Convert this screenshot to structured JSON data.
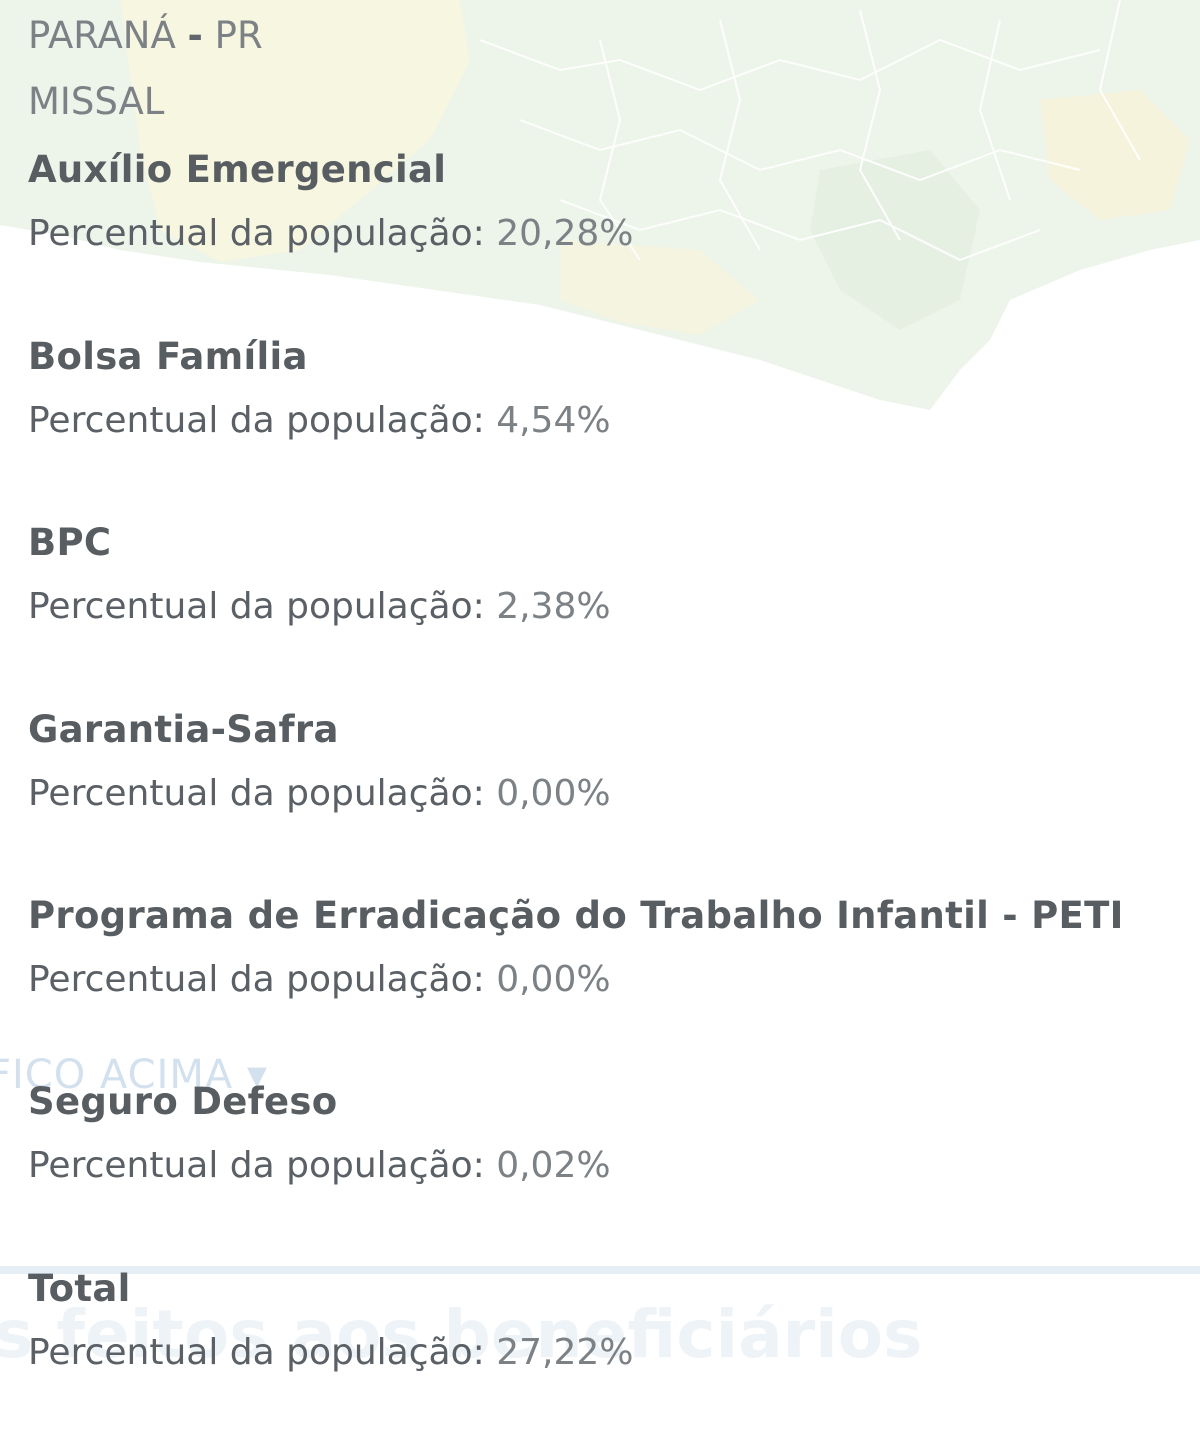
{
  "header": {
    "state": "PARANÁ",
    "separator": "-",
    "state_abbr": "PR",
    "city": "MISSAL"
  },
  "percent_label": "Percentual da população:",
  "programs": [
    {
      "name": "Auxílio Emergencial",
      "percent": "20,28%"
    },
    {
      "name": "Bolsa Família",
      "percent": "4,54%"
    },
    {
      "name": "BPC",
      "percent": "2,38%"
    },
    {
      "name": "Garantia-Safra",
      "percent": "0,00%"
    },
    {
      "name": "Programa de Erradicação do Trabalho Infantil - PETI",
      "percent": "0,00%"
    },
    {
      "name": "Seguro Defeso",
      "percent": "0,02%"
    },
    {
      "name": "Total",
      "percent": "27,22%"
    }
  ],
  "background": {
    "link_text": "FICO ACIMA ▾",
    "heading_text": "s feitos aos beneficiários"
  },
  "colors": {
    "map_green": "#dfeedc",
    "map_yellow": "#f4f2cc",
    "text_primary": "#585d62",
    "text_muted": "#7c8186"
  }
}
